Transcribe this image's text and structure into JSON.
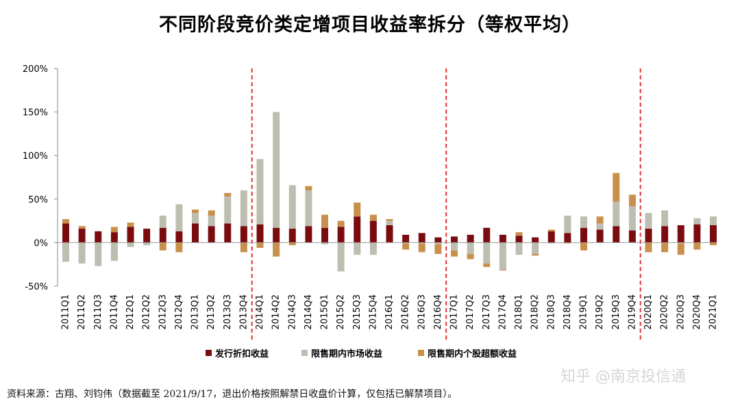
{
  "chart_data": {
    "type": "bar",
    "stacked": true,
    "title": "不同阶段竞价类定增项目收益率拆分（等权平均）",
    "categories": [
      "2011Q1",
      "2011Q2",
      "2011Q3",
      "2011Q4",
      "2012Q1",
      "2012Q2",
      "2012Q3",
      "2012Q4",
      "2013Q1",
      "2013Q2",
      "2013Q3",
      "2013Q4",
      "2014Q1",
      "2014Q2",
      "2014Q3",
      "2014Q4",
      "2015Q1",
      "2015Q2",
      "2015Q3",
      "2015Q4",
      "2016Q1",
      "2016Q2",
      "2016Q3",
      "2016Q4",
      "2017Q1",
      "2017Q2",
      "2017Q3",
      "2017Q4",
      "2018Q1",
      "2018Q2",
      "2018Q3",
      "2018Q4",
      "2019Q1",
      "2019Q2",
      "2019Q3",
      "2019Q4",
      "2020Q1",
      "2020Q2",
      "2020Q3",
      "2020Q4",
      "2021Q1"
    ],
    "series": [
      {
        "name": "发行折扣收益",
        "color": "#7a0c10",
        "values": [
          22,
          16,
          13,
          12,
          18,
          16,
          17,
          13,
          22,
          19,
          22,
          19,
          21,
          17,
          16,
          19,
          17,
          18,
          30,
          25,
          20,
          9,
          11,
          6,
          7,
          9,
          17,
          9,
          8,
          6,
          13,
          11,
          17,
          15,
          19,
          14,
          16,
          19,
          20,
          21,
          20
        ]
      },
      {
        "name": "限售期内市场收益",
        "color": "#bdbdb0",
        "values": [
          -22,
          -24,
          -27,
          -21,
          -5,
          -3,
          14,
          31,
          12,
          12,
          31,
          41,
          75,
          133,
          50,
          41,
          -2,
          -33,
          -14,
          -14,
          5,
          -1,
          -1,
          -2,
          -9,
          -13,
          -24,
          -31,
          -14,
          -13,
          -1,
          20,
          13,
          7,
          28,
          28,
          18,
          18,
          -1,
          7,
          10
        ]
      },
      {
        "name": "限售期内个股超额收益",
        "color": "#c8904a",
        "values": [
          5,
          3,
          0,
          6,
          5,
          0,
          -9,
          -11,
          4,
          6,
          4,
          -11,
          -6,
          -16,
          -3,
          5,
          15,
          7,
          16,
          7,
          2,
          -7,
          -10,
          -11,
          -7,
          -6,
          -4,
          -1,
          4,
          -2,
          2,
          -1,
          -9,
          8,
          33,
          13,
          -11,
          -11,
          -13,
          -8,
          -3
        ]
      }
    ],
    "yaxis": {
      "ticks": [
        "200%",
        "150%",
        "100%",
        "50%",
        "0%",
        "-50%"
      ],
      "ylim": [
        -50,
        200
      ],
      "unit": "%"
    },
    "legend_position": "bottom",
    "grid": false,
    "period_dividers_after": [
      "2013Q4",
      "2016Q4",
      "2019Q4"
    ],
    "divider_color": "#e53030"
  },
  "source_note": "资料来源：古翔、刘钧伟（数据截至 2021/9/17，退出价格按照解禁日收盘价计算，仅包括已解禁项目）。",
  "watermark": "知乎 @南京投信通"
}
